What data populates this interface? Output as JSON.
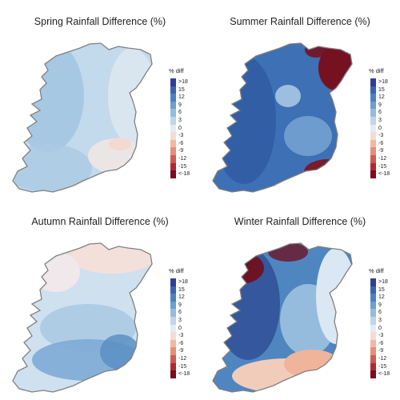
{
  "legend": {
    "title": "% diff",
    "labels": [
      ">18",
      "15",
      "12",
      "9",
      "6",
      "3",
      "0",
      "-3",
      "-6",
      "-9",
      "-12",
      "-15",
      "<-18"
    ],
    "colors": [
      "#2f3f94",
      "#3a64ab",
      "#4d83bd",
      "#6b9fcd",
      "#94bddc",
      "#bdd6ea",
      "#e4ecf3",
      "#f4dcd2",
      "#f2b9a1",
      "#e58e77",
      "#cc5b52",
      "#ad2a34",
      "#7b0c22"
    ]
  },
  "panels": [
    {
      "title": "Spring Rainfall Difference (%)",
      "colors": {
        "base": "#c3d9ec",
        "west": "#9dc2e0",
        "southwest": "#aac9e4",
        "east": "#dde7f1",
        "southeast": "#efe6e6",
        "patch": "#f3d9cf"
      }
    },
    {
      "title": "Summer Rainfall Difference (%)",
      "colors": {
        "base": "#3d70b4",
        "west": "#2f5aa3",
        "northeast": "#761122",
        "southeast": "#7a1a2a",
        "midlands": "#7aa8d4",
        "patch": "#a7c7e3"
      }
    },
    {
      "title": "Autumn Rainfall Difference (%)",
      "colors": {
        "base": "#cfe0ef",
        "north": "#f3e0da",
        "northwest": "#f0e8ea",
        "southwest": "#5a8fc4",
        "south": "#7eabd5",
        "midlands": "#a9c8e3"
      }
    },
    {
      "title": "Winter Rainfall Difference (%)",
      "colors": {
        "base": "#4f86c0",
        "northwest": "#6a1426",
        "west": "#2f4f96",
        "midlands": "#9cc2e0",
        "east": "#dbe7f2",
        "southeast": "#f0b49a",
        "south": "#f2ccbb"
      }
    }
  ]
}
